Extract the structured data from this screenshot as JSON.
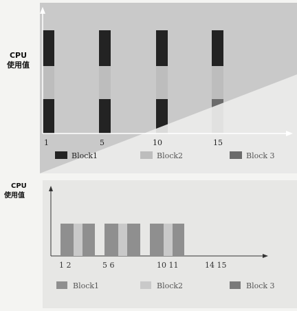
{
  "diagrams": [
    {
      "id": "top",
      "ylabel_line1": "CPU",
      "ylabel_line2": "使用值",
      "x_ticks": [
        "1",
        "5",
        "10",
        "15"
      ],
      "legend": [
        {
          "label": "Block1",
          "color": "#232323"
        },
        {
          "label": "Block2",
          "color": "#bdbdbd"
        },
        {
          "label": "Block 3",
          "color": "#6b6b6b"
        }
      ]
    },
    {
      "id": "bottom",
      "ylabel_line1": "CPU",
      "ylabel_line2": "使用值",
      "x_ticks": [
        "1 2",
        "5 6",
        "10 11",
        "14 15"
      ],
      "legend": [
        {
          "label": "Block1",
          "color": "#8f8f8f"
        },
        {
          "label": "Block2",
          "color": "#c9c9c9"
        },
        {
          "label": "Block 3",
          "color": "#7a7a7a"
        }
      ]
    }
  ],
  "colors": {
    "block1_dark": "#232323",
    "block2_light": "#bdbdbd",
    "block3_mid": "#6b6b6b",
    "bottom_bar": "#8f8f8f",
    "bottom_inner": "#c9c9c9",
    "axis": "#ffffff",
    "axis_bottom": "#333333"
  }
}
